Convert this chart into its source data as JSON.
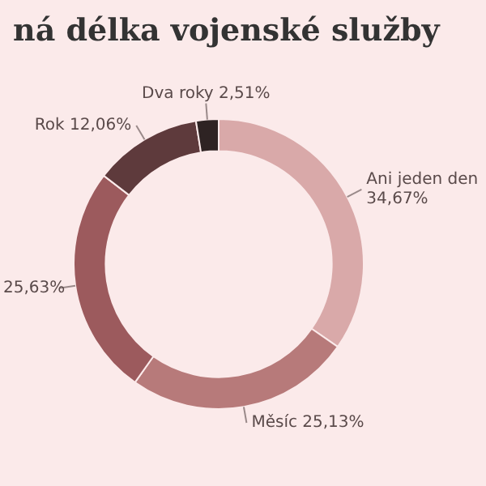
{
  "chart_data": {
    "type": "donut",
    "title": "ná délka vojenské služby",
    "categories": [
      "Ani jeden den",
      "Měsíc",
      null,
      "Rok",
      "Dva roky"
    ],
    "values": [
      34.67,
      25.13,
      25.63,
      12.06,
      2.51
    ],
    "value_labels": [
      "34,67%",
      "25,13%",
      "25,63%",
      "12,06%",
      "2,51%"
    ],
    "colors": [
      "#d9a9a9",
      "#b77a7a",
      "#9c5a5d",
      "#5e3a3c",
      "#2e2323"
    ],
    "legend": false
  }
}
